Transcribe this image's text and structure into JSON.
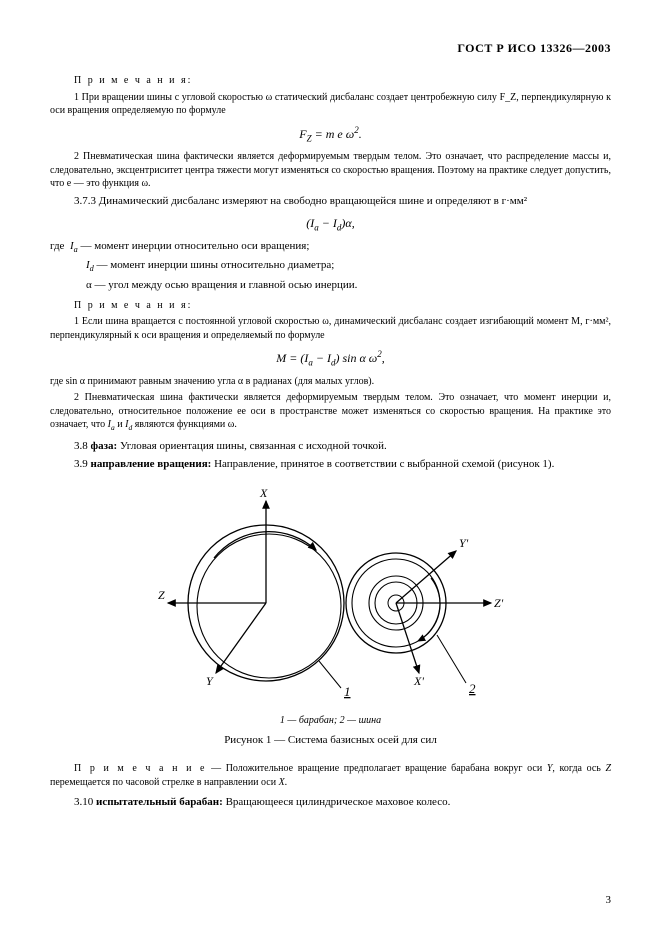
{
  "header": "ГОСТ Р ИСО 13326—2003",
  "notes_label": "П р и м е ч а н и я:",
  "p1": "1 При вращении шины с угловой скоростью ω статический дисбаланс создает центробежную силу F_Z, перпендикулярную к оси вращения определяемую по формуле",
  "formula1_html": "<span class='it'>F<sub>Z</sub></span> = <span class='it'>m e</span> ω<sup>2</sup>.",
  "p2": "2 Пневматическая шина фактически является деформируемым твердым телом. Это означает, что распределение массы и, следовательно, эксцентриситет центра тяжести могут изменяться со скоростью вращения. Поэтому на практике следует допустить, что e — это функция ω.",
  "p3": "3.7.3 Динамический дисбаланс измеряют на свободно вращающейся шине и определяют в г·мм²",
  "formula2_html": "(<span class='it'>I<sub>a</sub></span> − <span class='it'>I<sub>d</sub></span>)α,",
  "where_label": "где",
  "where1_html": "<span class='it'>I<sub>a</sub></span> — момент инерции относительно оси вращения;",
  "where2_html": "<span class='it'>I<sub>d</sub></span> — момент инерции шины относительно диаметра;",
  "where3_html": "α — угол между осью вращения и главной осью инерции.",
  "p4": "1 Если шина вращается с постоянной угловой скоростью ω, динамический дисбаланс создает изгибающий момент M, г·мм², перпендикулярный к оси вращения и определяемый по формуле",
  "formula3_html": "<span class='it'>M</span> = (<span class='it'>I<sub>a</sub></span> − <span class='it'>I<sub>d</sub></span>) sin α ω<sup>2</sup>,",
  "p5": "где sin α принимают равным значению угла α в радианах (для малых углов).",
  "p6_html": "2 Пневматическая шина фактически является деформируемым твердым телом. Это означает, что момент инерции и, следовательно, относительное положение ее оси в пространстве может изменяться со скоростью вращения. На практике это означает, что <span class='it'>I<sub>a</sub></span> и <span class='it'>I<sub>d</sub></span> являются функциями ω.",
  "p7_html": "3.8 <span class='term-bold'>фаза:</span> Угловая ориентация шины, связанная с исходной точкой.",
  "p8_html": "3.9 <span class='term-bold'>направление вращения:</span> Направление, принятое в соответствии с выбранной схемой (рисунок 1).",
  "fig_sub_html": "<span class='it'>1</span> — барабан; <span class='it'>2</span> — шина",
  "fig_caption": "Рисунок 1 — Система базисных осей для сил",
  "note_single_html": "<span class='sp'>П р и м е ч а н и е</span> — Положительное вращение предполагает вращение барабана вокруг оси <span class='it'>Y</span>, когда ось <span class='it'>Z</span> перемещается по часовой стрелке в направлении оси <span class='it'>X</span>.",
  "p9_html": "3.10 <span class='term-bold'>испытательный барабан:</span> Вращающееся цилиндрическое маховое колесо.",
  "page_number": "3",
  "figure": {
    "axis_labels": {
      "x": "X",
      "y": "Y",
      "z": "Z",
      "xp": "X'",
      "yp": "Y'",
      "zp": "Z'"
    },
    "item_labels": {
      "drum": "1",
      "tire": "2"
    },
    "colors": {
      "stroke": "#000000",
      "bg": "#ffffff"
    },
    "stroke_width": 1.2
  }
}
